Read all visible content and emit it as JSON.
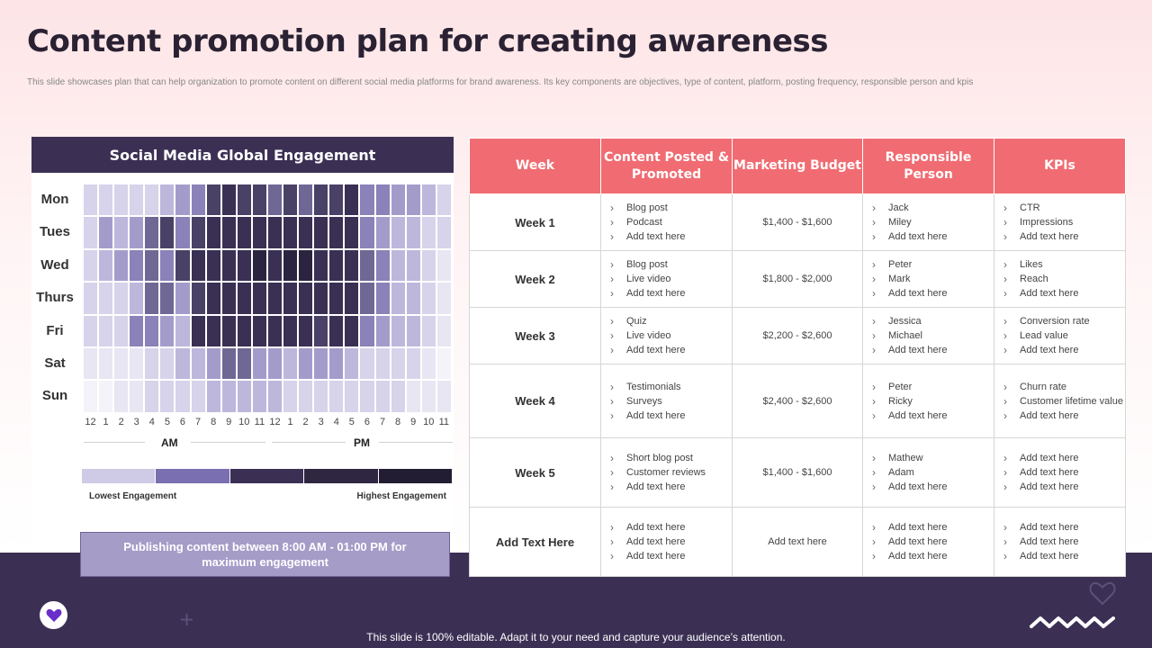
{
  "title": "Content promotion plan for creating awareness",
  "subtitle": "This slide showcases plan that can help organization to promote content on different social media platforms for brand awareness. Its key components are objectives, type of content, platform, posting frequency, responsible person and kpis",
  "heatmap": {
    "header": "Social Media Global Engagement",
    "days": [
      "Mon",
      "Tues",
      "Wed",
      "Thurs",
      "Fri",
      "Sat",
      "Sun"
    ],
    "hours": [
      "12",
      "1",
      "2",
      "3",
      "4",
      "5",
      "6",
      "7",
      "8",
      "9",
      "10",
      "11",
      "12",
      "1",
      "2",
      "3",
      "4",
      "5",
      "6",
      "7",
      "8",
      "9",
      "10",
      "11"
    ],
    "am_label": "AM",
    "pm_label": "PM",
    "legend_low": "Lowest Engagement",
    "legend_high": "Highest Engagement",
    "legend_colors": [
      "#cfcbe6",
      "#7a6fb0",
      "#3b3054",
      "#2f2742",
      "#231d33"
    ],
    "levels": [
      [
        2,
        2,
        2,
        2,
        2,
        3,
        4,
        5,
        7,
        8,
        7,
        7,
        6,
        7,
        6,
        7,
        7,
        8,
        5,
        5,
        4,
        4,
        3,
        2
      ],
      [
        2,
        4,
        3,
        4,
        6,
        7,
        5,
        7,
        8,
        8,
        8,
        8,
        8,
        8,
        8,
        8,
        8,
        8,
        5,
        4,
        3,
        3,
        2,
        2
      ],
      [
        2,
        3,
        4,
        5,
        6,
        5,
        7,
        8,
        8,
        8,
        8,
        9,
        8,
        9,
        9,
        8,
        8,
        8,
        6,
        5,
        3,
        3,
        2,
        1
      ],
      [
        2,
        2,
        2,
        3,
        6,
        6,
        4,
        7,
        8,
        8,
        8,
        8,
        8,
        8,
        8,
        8,
        8,
        8,
        6,
        5,
        3,
        3,
        2,
        1
      ],
      [
        2,
        2,
        2,
        5,
        5,
        4,
        3,
        8,
        8,
        8,
        8,
        8,
        8,
        8,
        8,
        7,
        8,
        8,
        5,
        4,
        3,
        3,
        2,
        1
      ],
      [
        1,
        1,
        1,
        1,
        2,
        2,
        3,
        3,
        4,
        6,
        6,
        4,
        4,
        3,
        4,
        4,
        4,
        3,
        2,
        2,
        2,
        2,
        1,
        0
      ],
      [
        0,
        0,
        1,
        1,
        2,
        2,
        2,
        2,
        3,
        3,
        3,
        3,
        3,
        2,
        2,
        2,
        2,
        2,
        2,
        2,
        2,
        1,
        1,
        1
      ]
    ],
    "level_colors": [
      "#f4f3f9",
      "#e8e6f3",
      "#d6d3ea",
      "#bdb7dc",
      "#a39ccb",
      "#8a82b8",
      "#6f6895",
      "#4a4166",
      "#393053",
      "#2b2440"
    ],
    "note": "Publishing content between 8:00 AM - 01:00 PM for maximum engagement"
  },
  "table": {
    "headers": [
      "Week",
      "Content Posted & Promoted",
      "Marketing Budget",
      "Responsible Person",
      "KPIs"
    ],
    "rows": [
      {
        "week": "Week 1",
        "content": [
          "Blog post",
          "Podcast",
          "Add text here"
        ],
        "budget": "$1,400 - $1,600",
        "persons": [
          "Jack",
          "Miley",
          "Add text here"
        ],
        "kpis": [
          "CTR",
          "Impressions",
          "Add text here"
        ]
      },
      {
        "week": "Week 2",
        "content": [
          "Blog post",
          "Live video",
          "Add text here"
        ],
        "budget": "$1,800 - $2,000",
        "persons": [
          "Peter",
          "Mark",
          "Add text here"
        ],
        "kpis": [
          "Likes",
          "Reach",
          "Add text here"
        ]
      },
      {
        "week": "Week 3",
        "content": [
          "Quiz",
          "Live video",
          "Add text here"
        ],
        "budget": "$2,200 - $2,600",
        "persons": [
          "Jessica",
          "Michael",
          "Add text here"
        ],
        "kpis": [
          "Conversion rate",
          "Lead value",
          "Add text here"
        ]
      },
      {
        "week": "Week 4",
        "content": [
          "Testimonials",
          "Surveys",
          "Add text here"
        ],
        "budget": "$2,400 - $2,600",
        "persons": [
          "Peter",
          "Ricky",
          "Add text here"
        ],
        "kpis": [
          "Churn rate",
          "Customer lifetime value",
          "Add text here"
        ]
      },
      {
        "week": "Week 5",
        "content": [
          "Short blog post",
          "Customer reviews",
          "Add text here"
        ],
        "budget": "$1,400 - $1,600",
        "persons": [
          "Mathew",
          "Adam",
          "Add text here"
        ],
        "kpis": [
          "Add text here",
          "Add text here",
          "Add text here"
        ]
      },
      {
        "week": "Add Text Here",
        "content": [
          "Add text here",
          "Add text here",
          "Add text here"
        ],
        "budget": "Add text here",
        "persons": [
          "Add text here",
          "Add text here",
          "Add text here"
        ],
        "kpis": [
          "Add text here",
          "Add text here",
          "Add text here"
        ]
      }
    ]
  },
  "footer": "This slide is 100% editable. Adapt it to your need and capture your audience’s attention.",
  "colors": {
    "accent": "#f06c72",
    "dark": "#3b3054",
    "lavender": "#a59cc8"
  },
  "icons": [
    "heart-icon",
    "plus-icon",
    "outline-heart-icon",
    "zigzag-icon"
  ]
}
